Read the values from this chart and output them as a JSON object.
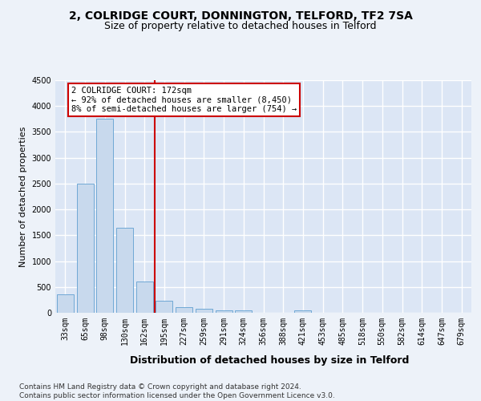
{
  "title_line1": "2, COLRIDGE COURT, DONNINGTON, TELFORD, TF2 7SA",
  "title_line2": "Size of property relative to detached houses in Telford",
  "xlabel": "Distribution of detached houses by size in Telford",
  "ylabel": "Number of detached properties",
  "categories": [
    "33sqm",
    "65sqm",
    "98sqm",
    "130sqm",
    "162sqm",
    "195sqm",
    "227sqm",
    "259sqm",
    "291sqm",
    "324sqm",
    "356sqm",
    "388sqm",
    "421sqm",
    "453sqm",
    "485sqm",
    "518sqm",
    "550sqm",
    "582sqm",
    "614sqm",
    "647sqm",
    "679sqm"
  ],
  "values": [
    350,
    2500,
    3750,
    1650,
    600,
    230,
    110,
    70,
    50,
    40,
    0,
    0,
    50,
    0,
    0,
    0,
    0,
    0,
    0,
    0,
    0
  ],
  "bar_color": "#c8d9ed",
  "bar_edge_color": "#6fa8d5",
  "vline_x_index": 4.5,
  "vline_color": "#cc0000",
  "annotation_text": "2 COLRIDGE COURT: 172sqm\n← 92% of detached houses are smaller (8,450)\n8% of semi-detached houses are larger (754) →",
  "annotation_box_color": "white",
  "annotation_box_edge_color": "#cc0000",
  "ylim": [
    0,
    4500
  ],
  "yticks": [
    0,
    500,
    1000,
    1500,
    2000,
    2500,
    3000,
    3500,
    4000,
    4500
  ],
  "footer_text": "Contains HM Land Registry data © Crown copyright and database right 2024.\nContains public sector information licensed under the Open Government Licence v3.0.",
  "background_color": "#edf2f9",
  "plot_background_color": "#dce6f5",
  "grid_color": "white",
  "title_fontsize": 10,
  "subtitle_fontsize": 9,
  "axis_label_fontsize": 8,
  "tick_fontsize": 7,
  "annotation_fontsize": 7.5,
  "footer_fontsize": 6.5
}
